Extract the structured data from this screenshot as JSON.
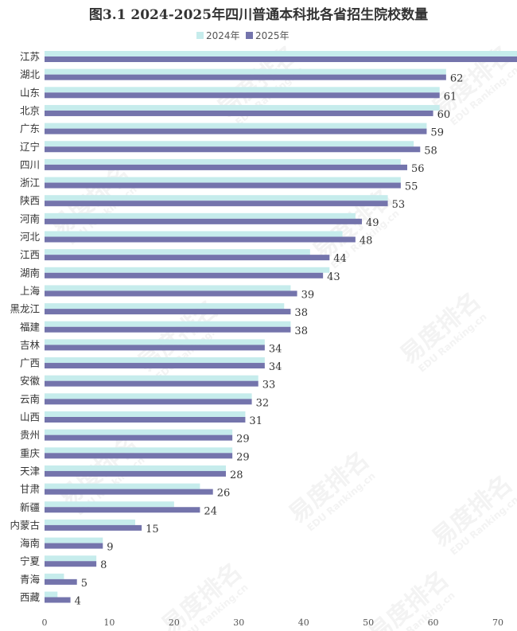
{
  "chart_data": {
    "type": "bar",
    "orientation": "horizontal",
    "title": "图3.1  2024-2025年四川普通本科批各省招生院校数量",
    "xlabel": "",
    "ylabel": "",
    "xlim": [
      0,
      70
    ],
    "xticks": [
      0,
      10,
      20,
      30,
      40,
      50,
      60,
      70
    ],
    "grid": false,
    "legend_position": "top",
    "categories": [
      "江苏",
      "湖北",
      "山东",
      "北京",
      "广东",
      "辽宁",
      "四川",
      "浙江",
      "陕西",
      "河南",
      "河北",
      "江西",
      "湖南",
      "上海",
      "黑龙江",
      "福建",
      "吉林",
      "广西",
      "安徽",
      "云南",
      "山西",
      "贵州",
      "重庆",
      "天津",
      "甘肃",
      "新疆",
      "内蒙古",
      "海南",
      "宁夏",
      "青海",
      "西藏"
    ],
    "series": [
      {
        "name": "2024年",
        "color": "#c6ecec",
        "values": [
          75,
          62,
          61,
          61,
          59,
          57,
          55,
          55,
          53,
          48,
          46,
          41,
          44,
          38,
          37,
          38,
          34,
          34,
          33,
          32,
          31,
          29,
          29,
          28,
          24,
          20,
          14,
          9,
          8,
          3,
          2
        ]
      },
      {
        "name": "2025年",
        "color": "#7474ac",
        "values": [
          75,
          62,
          61,
          60,
          59,
          58,
          56,
          55,
          53,
          49,
          48,
          44,
          43,
          39,
          38,
          38,
          34,
          34,
          33,
          32,
          31,
          29,
          29,
          28,
          26,
          24,
          15,
          9,
          8,
          5,
          4
        ]
      }
    ],
    "data_labels_series": "2025年"
  },
  "watermark": {
    "text_cn": "易度排名",
    "text_en": "EDU Ranking.cn"
  }
}
